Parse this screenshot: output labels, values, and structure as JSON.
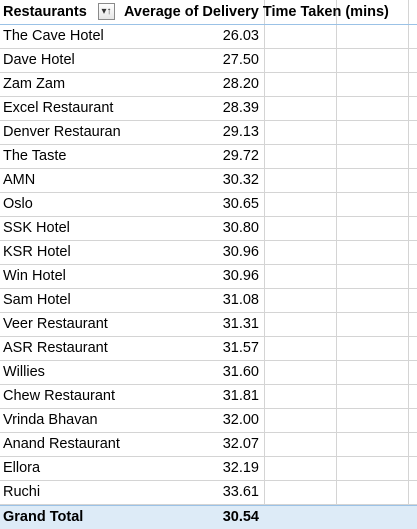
{
  "pivot": {
    "header": {
      "row_label": "Restaurants",
      "value_label": "Average of Delivery Time Taken (mins)"
    },
    "rows": [
      {
        "name": "The Cave Hotel",
        "value": "26.03"
      },
      {
        "name": "Dave Hotel",
        "value": "27.50"
      },
      {
        "name": "Zam Zam",
        "value": "28.20"
      },
      {
        "name": "Excel Restaurant",
        "value": "28.39"
      },
      {
        "name": "Denver Restaurant",
        "value": "29.13"
      },
      {
        "name": "The Taste",
        "value": "29.72"
      },
      {
        "name": "AMN",
        "value": "30.32"
      },
      {
        "name": "Oslo",
        "value": "30.65"
      },
      {
        "name": "SSK Hotel",
        "value": "30.80"
      },
      {
        "name": "KSR Hotel",
        "value": "30.96"
      },
      {
        "name": "Win Hotel",
        "value": "30.96"
      },
      {
        "name": "Sam Hotel",
        "value": "31.08"
      },
      {
        "name": "Veer Restaurant",
        "value": "31.31"
      },
      {
        "name": "ASR Restaurant",
        "value": "31.57"
      },
      {
        "name": "Willies",
        "value": "31.60"
      },
      {
        "name": "Chew Restaurant",
        "value": "31.81"
      },
      {
        "name": "Vrinda Bhavan",
        "value": "32.00"
      },
      {
        "name": "Anand Restaurant",
        "value": "32.07"
      },
      {
        "name": "Ellora",
        "value": "32.19"
      },
      {
        "name": "Ruchi",
        "value": "33.61"
      }
    ],
    "total": {
      "label": "Grand Total",
      "value": "30.54"
    },
    "filter_icon": "sort-filter-dropdown-icon",
    "colors": {
      "total_fill": "#ddebf7",
      "header_border": "#9bc2e6",
      "gridline": "#d4d4d4"
    }
  }
}
